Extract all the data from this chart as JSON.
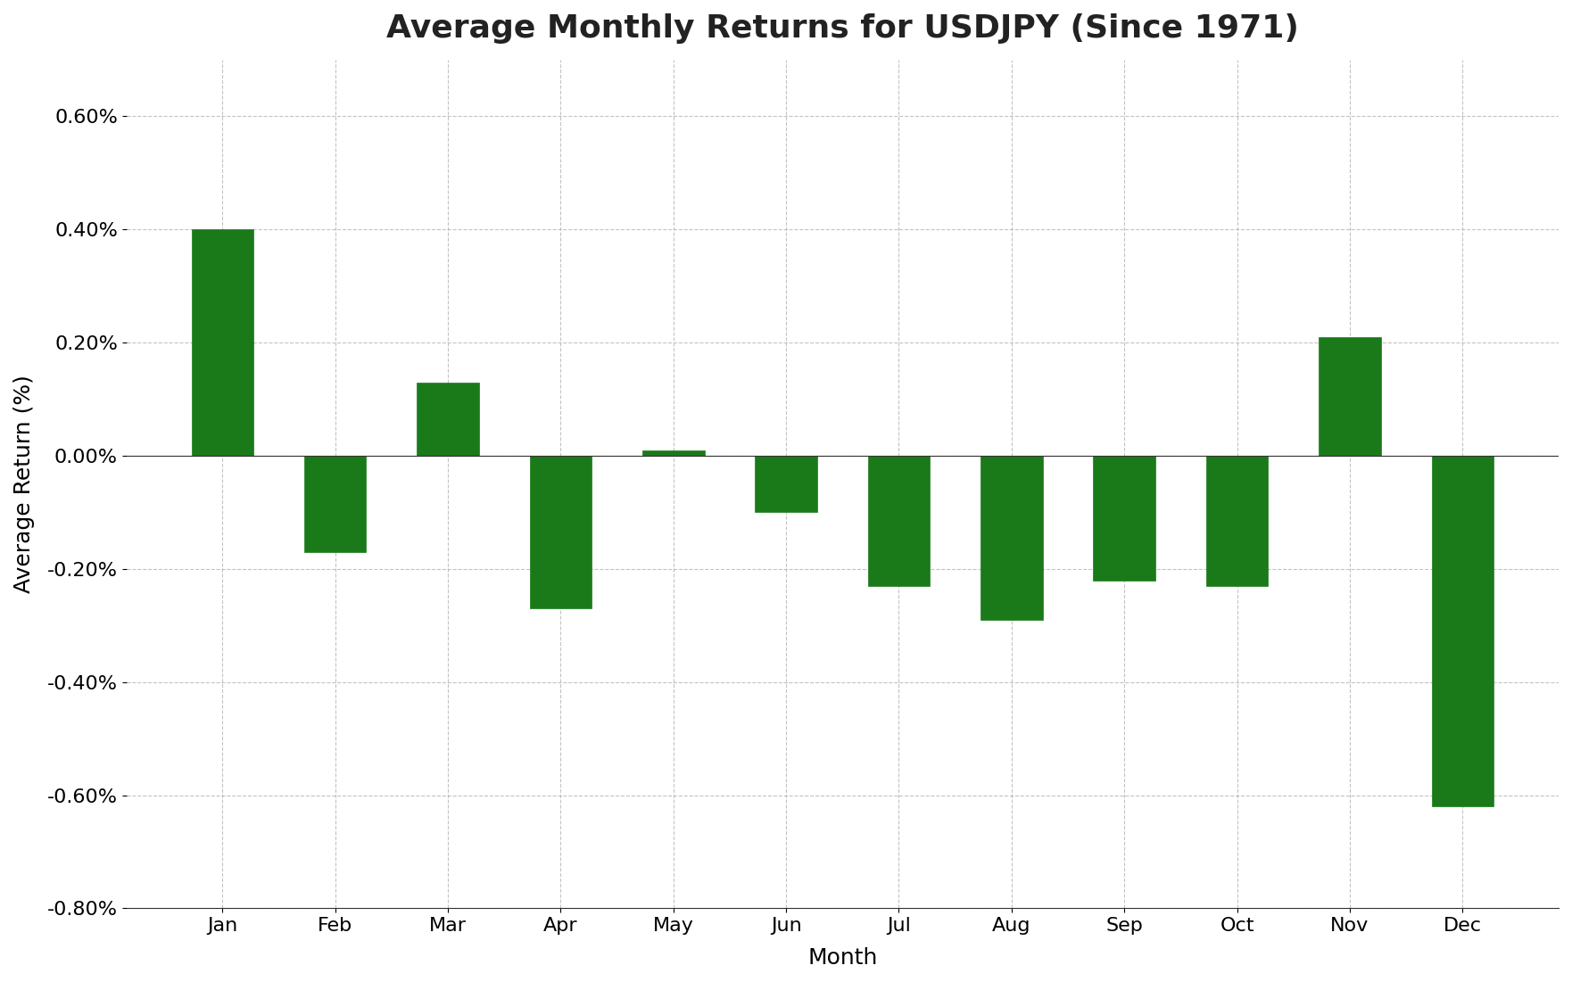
{
  "title": "Average Monthly Returns for USDJPY (Since 1971)",
  "xlabel": "Month",
  "ylabel": "Average Return (%)",
  "months": [
    "Jan",
    "Feb",
    "Mar",
    "Apr",
    "May",
    "Jun",
    "Jul",
    "Aug",
    "Sep",
    "Oct",
    "Nov",
    "Dec"
  ],
  "values": [
    0.004,
    -0.0017,
    0.0013,
    -0.0027,
    0.0001,
    -0.001,
    -0.0023,
    -0.0029,
    -0.0022,
    -0.0023,
    0.0021,
    -0.0062
  ],
  "bar_color": "#1a7a1a",
  "bar_edge_color": "#1a7a1a",
  "background_color": "#ffffff",
  "grid_color": "#aaaaaa",
  "ylim": [
    -0.008,
    0.007
  ],
  "yticks": [
    -0.008,
    -0.006,
    -0.004,
    -0.002,
    0.0,
    0.002,
    0.004,
    0.006
  ],
  "title_fontsize": 26,
  "axis_label_fontsize": 18,
  "tick_fontsize": 16,
  "bar_width": 0.55
}
